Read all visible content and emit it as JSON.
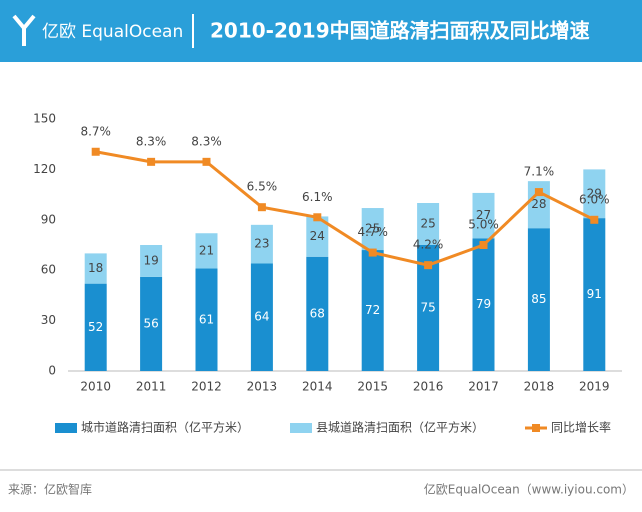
{
  "header": {
    "logo": "亿欧 EqualOcean",
    "title": "2010-2019中国道路清扫面积及同比增速"
  },
  "chart_data": {
    "type": "bar-line",
    "categories": [
      "2010",
      "2011",
      "2012",
      "2013",
      "2014",
      "2015",
      "2016",
      "2017",
      "2018",
      "2019"
    ],
    "series": [
      {
        "name": "城市道路清扫面积（亿平方米）",
        "color": "#1a8fd0",
        "values": [
          52,
          56,
          61,
          64,
          68,
          72,
          75,
          79,
          85,
          91
        ]
      },
      {
        "name": "县城道路清扫面积（亿平方米）",
        "color": "#8fd3f0",
        "values": [
          18,
          19,
          21,
          23,
          24,
          25,
          25,
          27,
          28,
          29
        ]
      },
      {
        "name": "同比增长率",
        "color": "#f08a24",
        "axis": "y2",
        "values": [
          8.7,
          8.3,
          8.3,
          6.5,
          6.1,
          4.7,
          4.2,
          5.0,
          7.1,
          6.0
        ],
        "value_labels": [
          "8.7%",
          "8.3%",
          "8.3%",
          "6.5%",
          "6.1%",
          "4.7%",
          "4.2%",
          "5.0%",
          "7.1%",
          "6.0%"
        ]
      }
    ],
    "ylim": [
      0,
      150
    ],
    "yticks": [
      0,
      30,
      60,
      90,
      120,
      150
    ],
    "y2lim": [
      0,
      10
    ]
  },
  "footer": {
    "source": "来源：亿欧智库",
    "site": "亿欧EqualOcean（www.iyiou.com）"
  }
}
